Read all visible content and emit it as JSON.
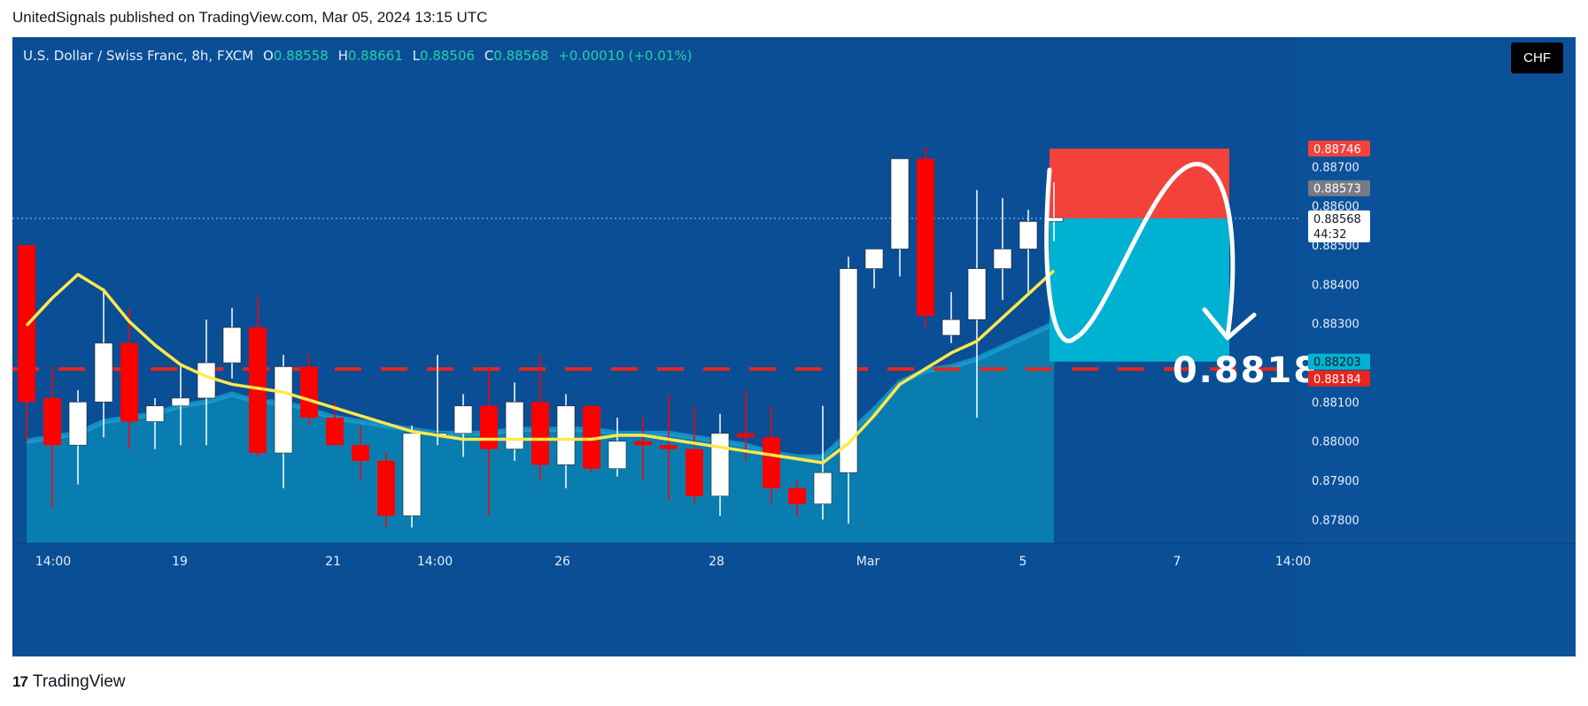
{
  "header": {
    "published": "UnitedSignals published on TradingView.com, Mar 05, 2024 13:15 UTC"
  },
  "legend": {
    "symbol": "U.S. Dollar / Swiss Franc, 8h, FXCM",
    "o_label": "O",
    "o": "0.88558",
    "h_label": "H",
    "h": "0.88661",
    "l_label": "L",
    "l": "0.88506",
    "c_label": "C",
    "c": "0.88568",
    "change": "+0.00010 (+0.01%)"
  },
  "currency_button": "CHF",
  "price_tags": {
    "tp_top": "0.88746",
    "prev_close": "0.88573",
    "last": "0.88568",
    "countdown": "44:32",
    "entry_low": "0.88203",
    "support": "0.88184"
  },
  "annotation_text": "0.8818",
  "footer": {
    "logo": "17",
    "brand": "TradingView"
  },
  "colors": {
    "background": "#0a4e96",
    "bull": "#ffffff",
    "bear": "#ff0000",
    "ma_yellow": "#ffe94a",
    "area_fill": "#0b86b5",
    "support_line": "#e8251f",
    "target_zone": "#00b2d2",
    "stop_zone": "#f3423a"
  },
  "chart_data": {
    "type": "candlestick",
    "ylim": [
      0.8774,
      0.8903
    ],
    "y_ticks": [
      "0.88700",
      "0.88600",
      "0.88500",
      "0.88400",
      "0.88300",
      "0.88200",
      "0.88100",
      "0.88000",
      "0.87900",
      "0.87800"
    ],
    "x_ticks": [
      "14:00",
      "19",
      "21",
      "14:00",
      "26",
      "28",
      "Mar",
      "5",
      "7",
      "14:00"
    ],
    "candles": [
      {
        "o": 0.885,
        "h": 0.885,
        "l": 0.88,
        "c": 0.881
      },
      {
        "o": 0.8811,
        "h": 0.8819,
        "l": 0.8783,
        "c": 0.8799
      },
      {
        "o": 0.8799,
        "h": 0.8813,
        "l": 0.8789,
        "c": 0.881
      },
      {
        "o": 0.881,
        "h": 0.8839,
        "l": 0.8801,
        "c": 0.8825
      },
      {
        "o": 0.8825,
        "h": 0.8834,
        "l": 0.8798,
        "c": 0.8805
      },
      {
        "o": 0.8805,
        "h": 0.8811,
        "l": 0.8798,
        "c": 0.8809
      },
      {
        "o": 0.8809,
        "h": 0.8819,
        "l": 0.8799,
        "c": 0.8811
      },
      {
        "o": 0.8811,
        "h": 0.8831,
        "l": 0.8799,
        "c": 0.882
      },
      {
        "o": 0.882,
        "h": 0.8834,
        "l": 0.8816,
        "c": 0.8829
      },
      {
        "o": 0.8829,
        "h": 0.8837,
        "l": 0.8796,
        "c": 0.8797
      },
      {
        "o": 0.8797,
        "h": 0.8822,
        "l": 0.8788,
        "c": 0.8819
      },
      {
        "o": 0.8819,
        "h": 0.8822,
        "l": 0.8804,
        "c": 0.8806
      },
      {
        "o": 0.8806,
        "h": 0.881,
        "l": 0.8799,
        "c": 0.8799
      },
      {
        "o": 0.8799,
        "h": 0.8804,
        "l": 0.879,
        "c": 0.8795
      },
      {
        "o": 0.8795,
        "h": 0.8797,
        "l": 0.8778,
        "c": 0.8781
      },
      {
        "o": 0.8781,
        "h": 0.8804,
        "l": 0.8778,
        "c": 0.8802
      },
      {
        "o": 0.8802,
        "h": 0.8822,
        "l": 0.8799,
        "c": 0.8802
      },
      {
        "o": 0.8802,
        "h": 0.8812,
        "l": 0.8796,
        "c": 0.8809
      },
      {
        "o": 0.8809,
        "h": 0.8819,
        "l": 0.8781,
        "c": 0.8798
      },
      {
        "o": 0.8798,
        "h": 0.8815,
        "l": 0.8795,
        "c": 0.881
      },
      {
        "o": 0.881,
        "h": 0.8822,
        "l": 0.879,
        "c": 0.8794
      },
      {
        "o": 0.8794,
        "h": 0.8812,
        "l": 0.8788,
        "c": 0.8809
      },
      {
        "o": 0.8809,
        "h": 0.8809,
        "l": 0.8792,
        "c": 0.8793
      },
      {
        "o": 0.8793,
        "h": 0.8806,
        "l": 0.8791,
        "c": 0.88
      },
      {
        "o": 0.88,
        "h": 0.8806,
        "l": 0.879,
        "c": 0.8799
      },
      {
        "o": 0.8799,
        "h": 0.8812,
        "l": 0.8785,
        "c": 0.8798
      },
      {
        "o": 0.8798,
        "h": 0.8809,
        "l": 0.8784,
        "c": 0.8786
      },
      {
        "o": 0.8786,
        "h": 0.8807,
        "l": 0.8781,
        "c": 0.8802
      },
      {
        "o": 0.8802,
        "h": 0.8813,
        "l": 0.8795,
        "c": 0.8801
      },
      {
        "o": 0.8801,
        "h": 0.8809,
        "l": 0.8784,
        "c": 0.8788
      },
      {
        "o": 0.8788,
        "h": 0.879,
        "l": 0.8781,
        "c": 0.8784
      },
      {
        "o": 0.8784,
        "h": 0.8809,
        "l": 0.878,
        "c": 0.8792
      },
      {
        "o": 0.8792,
        "h": 0.8847,
        "l": 0.8779,
        "c": 0.8844
      },
      {
        "o": 0.8844,
        "h": 0.8848,
        "l": 0.8839,
        "c": 0.8849
      },
      {
        "o": 0.8849,
        "h": 0.8872,
        "l": 0.8842,
        "c": 0.8872
      },
      {
        "o": 0.8872,
        "h": 0.8875,
        "l": 0.8829,
        "c": 0.8832
      },
      {
        "o": 0.8827,
        "h": 0.8838,
        "l": 0.8825,
        "c": 0.8831
      },
      {
        "o": 0.8831,
        "h": 0.8864,
        "l": 0.8806,
        "c": 0.8844
      },
      {
        "o": 0.8844,
        "h": 0.8862,
        "l": 0.8836,
        "c": 0.8849
      },
      {
        "o": 0.8849,
        "h": 0.8859,
        "l": 0.8838,
        "c": 0.8856
      },
      {
        "o": 0.8856,
        "h": 0.8866,
        "l": 0.8851,
        "c": 0.8857
      }
    ],
    "ma_yellow": [
      0.88295,
      0.88365,
      0.88425,
      0.88385,
      0.88305,
      0.88245,
      0.88195,
      0.88165,
      0.88145,
      0.88135,
      0.88125,
      0.88105,
      0.88085,
      0.88065,
      0.88045,
      0.88025,
      0.88015,
      0.88005,
      0.88005,
      0.88005,
      0.88005,
      0.88005,
      0.88005,
      0.88015,
      0.88015,
      0.88005,
      0.87995,
      0.87985,
      0.87975,
      0.87965,
      0.87955,
      0.87945,
      0.87995,
      0.88065,
      0.88145,
      0.88185,
      0.88225,
      0.88255,
      0.88315,
      0.88375,
      0.88435
    ],
    "area": [
      0.88,
      0.8801,
      0.8802,
      0.8805,
      0.8806,
      0.8807,
      0.8809,
      0.881,
      0.8812,
      0.881,
      0.881,
      0.8808,
      0.8806,
      0.8805,
      0.8804,
      0.8803,
      0.8802,
      0.8802,
      0.8802,
      0.8803,
      0.8803,
      0.8803,
      0.8803,
      0.8802,
      0.8802,
      0.8802,
      0.8801,
      0.88,
      0.8799,
      0.8797,
      0.8796,
      0.8796,
      0.8802,
      0.8808,
      0.8815,
      0.8818,
      0.8819,
      0.8821,
      0.8824,
      0.8827,
      0.883
    ],
    "support_level": 0.88184,
    "last_price": 0.88568,
    "position_box": {
      "stop": 0.88746,
      "entry": 0.88568,
      "target": 0.88203
    },
    "annotation": "0.8818"
  }
}
